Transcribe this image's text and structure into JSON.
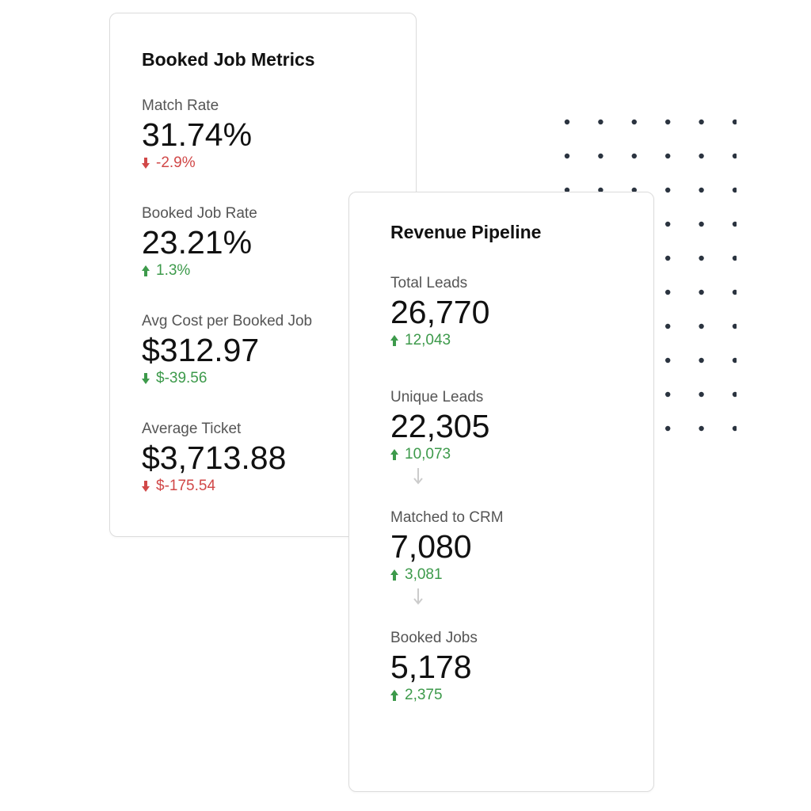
{
  "booked_job_metrics": {
    "title": "Booked Job Metrics",
    "metrics": [
      {
        "label": "Match Rate",
        "value": "31.74%",
        "delta": "-2.9%",
        "direction": "down",
        "tone": "negative"
      },
      {
        "label": "Booked Job Rate",
        "value": "23.21%",
        "delta": "1.3%",
        "direction": "up",
        "tone": "positive"
      },
      {
        "label": "Avg Cost per Booked Job",
        "value": "$312.97",
        "delta": "$-39.56",
        "direction": "down",
        "tone": "positive"
      },
      {
        "label": "Average Ticket",
        "value": "$3,713.88",
        "delta": "$-175.54",
        "direction": "down",
        "tone": "negative"
      }
    ]
  },
  "revenue_pipeline": {
    "title": "Revenue Pipeline",
    "metrics": [
      {
        "label": "Total Leads",
        "value": "26,770",
        "delta": "12,043",
        "direction": "up",
        "tone": "positive"
      },
      {
        "label": "Unique Leads",
        "value": "22,305",
        "delta": "10,073",
        "direction": "up",
        "tone": "positive"
      },
      {
        "label": "Matched to CRM",
        "value": "7,080",
        "delta": "3,081",
        "direction": "up",
        "tone": "positive"
      },
      {
        "label": "Booked Jobs",
        "value": "5,178",
        "delta": "2,375",
        "direction": "up",
        "tone": "positive"
      }
    ]
  },
  "colors": {
    "positive": "#3d9a4b",
    "negative": "#d14848",
    "dots": "#2b3440",
    "flow_arrow": "#cccccc"
  },
  "icons": {
    "up": "arrow-up-icon",
    "down": "arrow-down-icon",
    "flow": "flow-down-arrow-icon"
  }
}
